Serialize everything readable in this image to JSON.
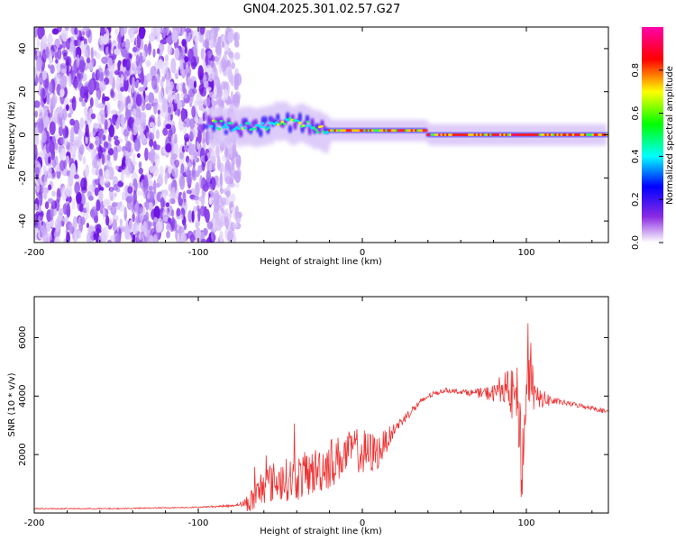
{
  "window": {
    "title": "GN04.2025.301.02.57.G27"
  },
  "chart_data": [
    {
      "id": "spectrogram",
      "type": "heatmap",
      "title": "GN04.2025.301.02.57.G27",
      "xlabel": "Height of straight line (km)",
      "ylabel": "Frequency (Hz)",
      "xlim": [
        -200,
        150
      ],
      "ylim": [
        -50,
        50
      ],
      "xticks": [
        -200,
        -100,
        0,
        100
      ],
      "xtick_labels": [
        "-200",
        "-100",
        "0",
        "100"
      ],
      "yticks": [
        40,
        20,
        0,
        -20,
        -40
      ],
      "ytick_labels": [
        "40",
        "20",
        "0",
        "-20",
        "-40"
      ],
      "colorbar": {
        "label": "Normalized spectral amplitude",
        "range": [
          0,
          1
        ],
        "ticks": [
          0.0,
          0.2,
          0.4,
          0.6,
          0.8
        ],
        "tick_labels": [
          "0.0",
          "0.2",
          "0.4",
          "0.6",
          "0.8"
        ],
        "colors": [
          "#ffffff",
          "#8a2be2",
          "#0000ff",
          "#00ffff",
          "#00ff00",
          "#ffff00",
          "#ff0000",
          "#ff00aa"
        ]
      },
      "regions": [
        {
          "name": "noise",
          "x_range": [
            -200,
            -80
          ],
          "freq_range": [
            -50,
            50
          ],
          "amplitude": "low (0.05-0.3)"
        },
        {
          "name": "signal-wavy",
          "x_range": [
            -95,
            -20
          ],
          "center_freq": [
            5,
            4,
            3,
            6,
            5,
            1
          ],
          "center_x": [
            -95,
            -80,
            -65,
            -50,
            -35,
            -20
          ],
          "amplitude": "0.3-0.6"
        },
        {
          "name": "signal-steady",
          "x_range": [
            -20,
            40
          ],
          "center_freq": 2,
          "amplitude": "0.7-0.9"
        },
        {
          "name": "signal-peak",
          "x_range": [
            40,
            150
          ],
          "center_freq": 0,
          "amplitude": "0.8-1.0"
        }
      ]
    },
    {
      "id": "snr",
      "type": "line",
      "xlabel": "Height of straight line (km)",
      "ylabel": "SNR (10 * v/v)",
      "xlim": [
        -200,
        150
      ],
      "ylim": [
        0,
        7400
      ],
      "xticks": [
        -200,
        -100,
        0,
        100
      ],
      "xtick_labels": [
        "-200",
        "-100",
        "0",
        "100"
      ],
      "yticks": [
        2000,
        4000,
        6000
      ],
      "ytick_labels": [
        "2000",
        "4000",
        "6000"
      ],
      "series": [
        {
          "name": "SNR",
          "color": "#ee3333",
          "x": [
            -200,
            -150,
            -100,
            -80,
            -75,
            -70,
            -65,
            -60,
            -50,
            -40,
            -30,
            -20,
            -10,
            -5,
            0,
            10,
            20,
            30,
            40,
            50,
            60,
            70,
            80,
            85,
            90,
            95,
            97,
            100,
            102,
            105,
            110,
            120,
            130,
            140,
            150
          ],
          "y": [
            150,
            150,
            200,
            250,
            300,
            350,
            500,
            1000,
            1100,
            1200,
            1400,
            1700,
            2000,
            2300,
            2000,
            2100,
            2900,
            3500,
            4000,
            4200,
            4150,
            4100,
            4100,
            4300,
            4100,
            3800,
            1500,
            3800,
            5000,
            3900,
            3900,
            3800,
            3700,
            3600,
            3450
          ],
          "noise": [
            20,
            20,
            20,
            40,
            40,
            300,
            600,
            700,
            700,
            800,
            800,
            900,
            700,
            600,
            900,
            600,
            200,
            150,
            100,
            80,
            80,
            150,
            300,
            500,
            800,
            1200,
            1500,
            1000,
            1400,
            500,
            300,
            100,
            80,
            80,
            80
          ]
        }
      ]
    }
  ]
}
